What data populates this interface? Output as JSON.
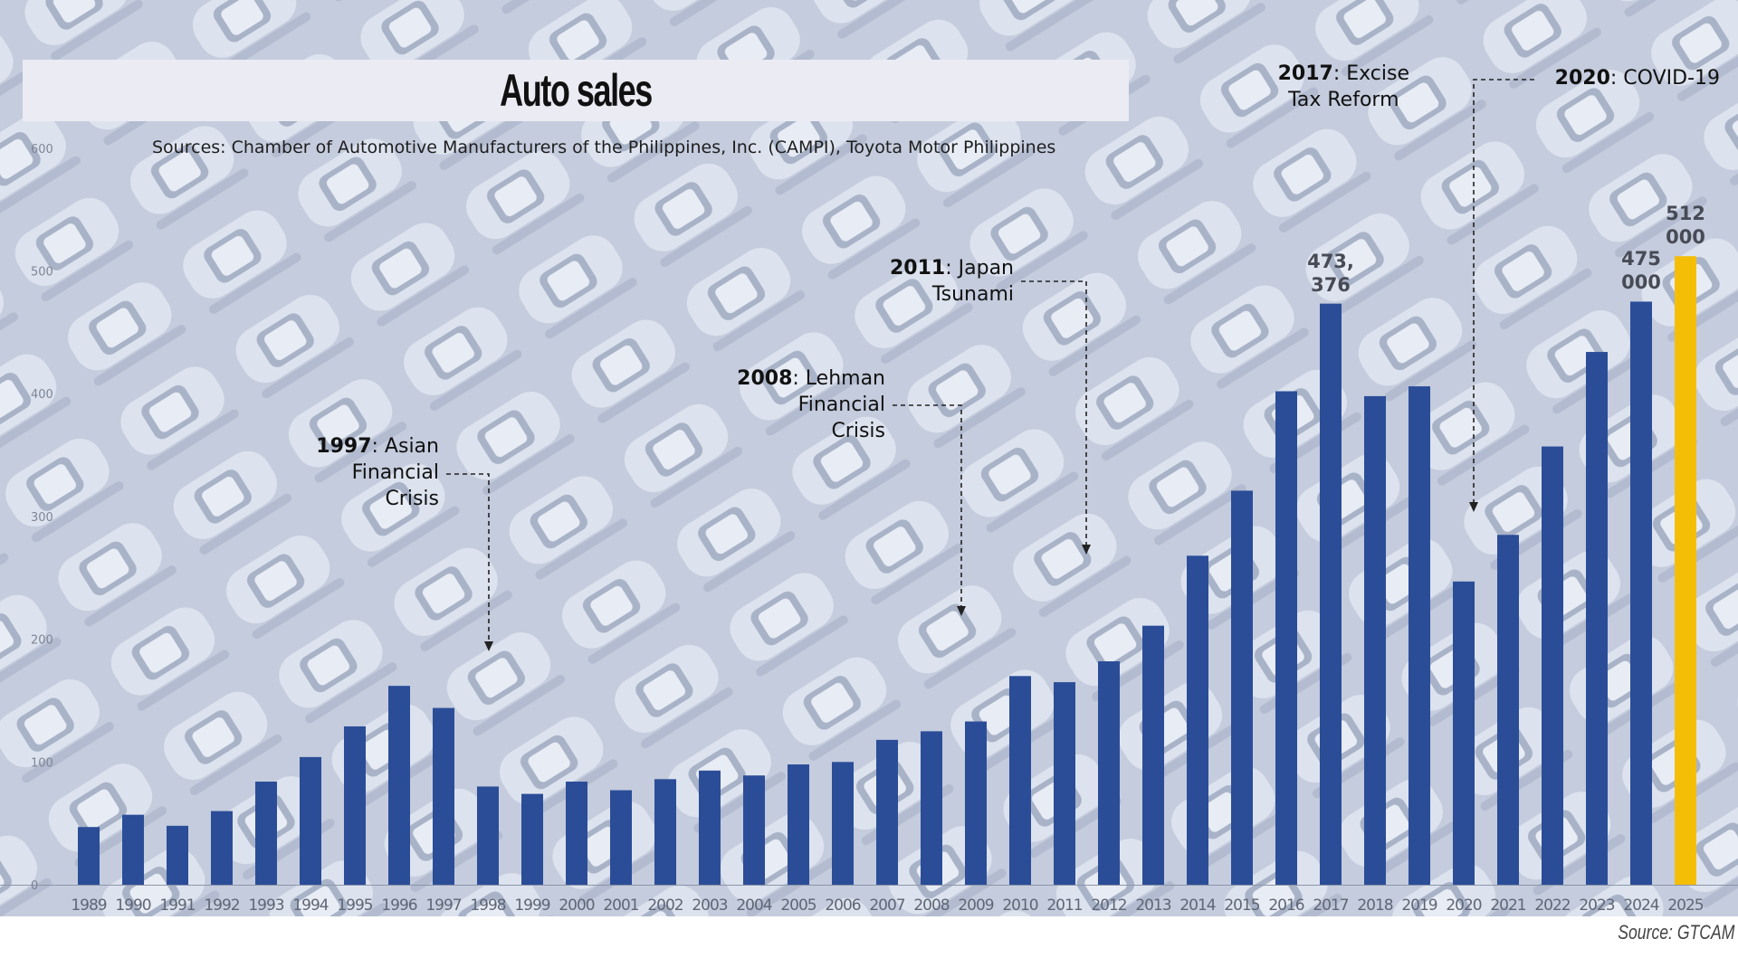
{
  "title": "Auto sales",
  "sources": "Sources: Chamber of Automotive Manufacturers of the Philippines, Inc. (CAMPI), Toyota Motor Philippines",
  "footer": "Source: GTCAM",
  "colors": {
    "bar": "#2b4d98",
    "highlight": "#f5be06",
    "background": "#c4ccdd"
  },
  "chart_data": {
    "type": "bar",
    "title": "Auto sales",
    "ylim": [
      0,
      600
    ],
    "yticks": [
      "0",
      "100",
      "200",
      "300",
      "400",
      "500",
      "600"
    ],
    "categories": [
      "1989",
      "1990",
      "1991",
      "1992",
      "1993",
      "1994",
      "1995",
      "1996",
      "1997",
      "1998",
      "1999",
      "2000",
      "2001",
      "2002",
      "2003",
      "2004",
      "2005",
      "2006",
      "2007",
      "2008",
      "2009",
      "2010",
      "2011",
      "2012",
      "2013",
      "2014",
      "2015",
      "2016",
      "2017",
      "2018",
      "2019",
      "2020",
      "2021",
      "2022",
      "2023",
      "2024",
      "2025"
    ],
    "values": [
      47,
      57,
      48,
      60,
      84,
      104,
      129,
      162,
      144,
      80,
      74,
      84,
      77,
      86,
      93,
      89,
      98,
      100,
      118,
      125,
      133,
      170,
      165,
      182,
      211,
      268,
      321,
      402,
      473.376,
      398,
      406,
      247,
      285,
      357,
      434,
      475,
      512
    ],
    "highlight_index": 36,
    "data_labels": [
      {
        "index": 28,
        "lines": [
          "473,",
          "376"
        ]
      },
      {
        "index": 35,
        "lines": [
          "475",
          "000"
        ]
      },
      {
        "index": 36,
        "lines": [
          "512",
          "000"
        ]
      }
    ],
    "annotations": [
      {
        "year": "1997",
        "lines": [
          ": Asian",
          "Financial",
          "Crisis"
        ]
      },
      {
        "year": "2008",
        "lines": [
          ": Lehman",
          "Financial",
          "Crisis"
        ]
      },
      {
        "year": "2011",
        "lines": [
          ": Japan",
          "Tsunami"
        ]
      },
      {
        "year": "2017",
        "lines": [
          ": Excise",
          "Tax Reform"
        ]
      },
      {
        "year": "2020",
        "lines": [
          ": COVID-19"
        ]
      }
    ],
    "grid": false,
    "legend": "none"
  }
}
